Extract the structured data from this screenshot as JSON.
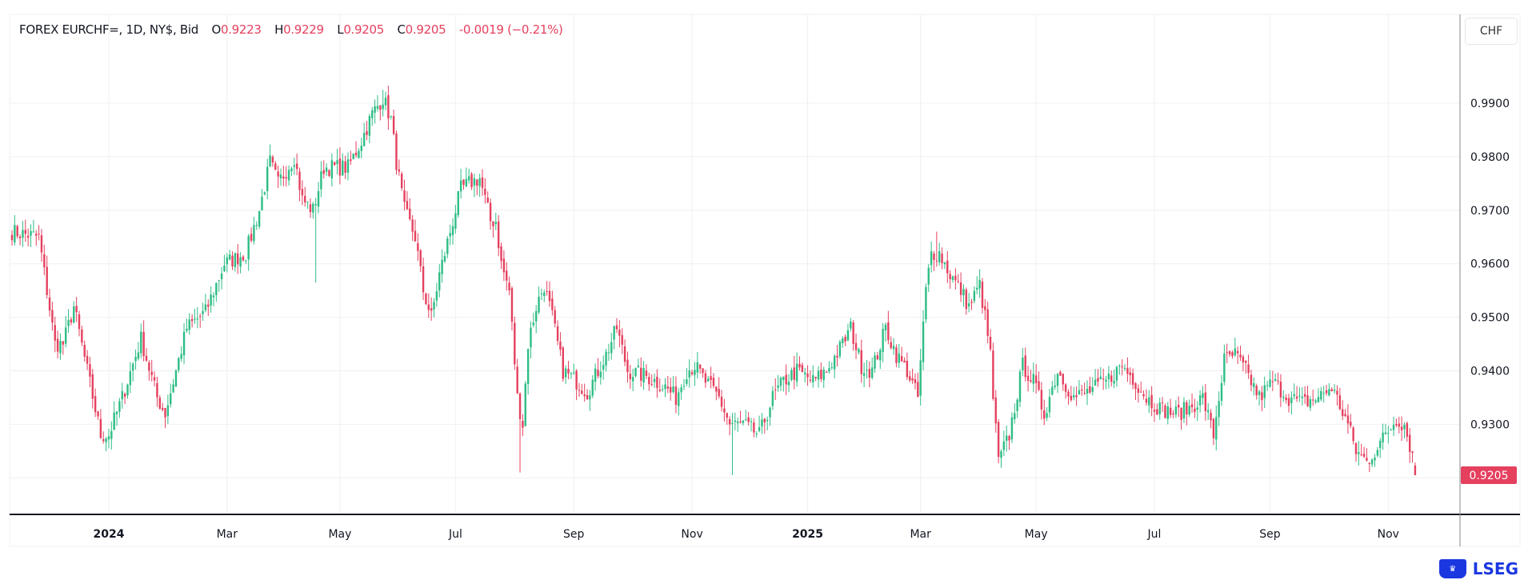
{
  "legend": {
    "symbol": "FOREX EURCHF=, 1D, NY$, Bid",
    "open_label": "O",
    "open": "0.9223",
    "high_label": "H",
    "high": "0.9229",
    "low_label": "L",
    "low": "0.9205",
    "close_label": "C",
    "close": "0.9205",
    "change": "-0.0019 (−0.21%)"
  },
  "currency_button": "CHF",
  "logo_text": "LSEG",
  "colors": {
    "up": "#2ebd85",
    "down": "#e5405e",
    "grid": "#f0f0f0",
    "last_price_bg": "#e5405e"
  },
  "chart_data": {
    "type": "candlestick",
    "title": "FOREX EURCHF=, 1D, NY$, Bid",
    "ylabel": "CHF",
    "ylim": [
      0.9135,
      0.9965
    ],
    "y_ticks": [
      "0.9900",
      "0.9800",
      "0.9700",
      "0.9600",
      "0.9500",
      "0.9400",
      "0.9300"
    ],
    "x_ticks": [
      {
        "label": "2024",
        "day": 36,
        "bold": true
      },
      {
        "label": "Mar",
        "day": 80
      },
      {
        "label": "May",
        "day": 122
      },
      {
        "label": "Jul",
        "day": 165
      },
      {
        "label": "Sep",
        "day": 209
      },
      {
        "label": "Nov",
        "day": 253
      },
      {
        "label": "2025",
        "day": 296,
        "bold": true
      },
      {
        "label": "Mar",
        "day": 338
      },
      {
        "label": "May",
        "day": 381
      },
      {
        "label": "Jul",
        "day": 425
      },
      {
        "label": "Sep",
        "day": 468
      },
      {
        "label": "Nov",
        "day": 512
      }
    ],
    "total_days": 523,
    "close_keypoints": [
      [
        0,
        0.966
      ],
      [
        10,
        0.965
      ],
      [
        13,
        0.955
      ],
      [
        16,
        0.945
      ],
      [
        19,
        0.945
      ],
      [
        23,
        0.952
      ],
      [
        28,
        0.94
      ],
      [
        33,
        0.928
      ],
      [
        36,
        0.928
      ],
      [
        41,
        0.935
      ],
      [
        48,
        0.946
      ],
      [
        54,
        0.935
      ],
      [
        57,
        0.932
      ],
      [
        65,
        0.948
      ],
      [
        72,
        0.951
      ],
      [
        79,
        0.96
      ],
      [
        87,
        0.962
      ],
      [
        92,
        0.97
      ],
      [
        96,
        0.979
      ],
      [
        99,
        0.975
      ],
      [
        105,
        0.98
      ],
      [
        108,
        0.972
      ],
      [
        112,
        0.97
      ],
      [
        116,
        0.978
      ],
      [
        119,
        0.978
      ],
      [
        125,
        0.978
      ],
      [
        130,
        0.983
      ],
      [
        134,
        0.988
      ],
      [
        138,
        0.991
      ],
      [
        141,
        0.987
      ],
      [
        143,
        0.979
      ],
      [
        146,
        0.97
      ],
      [
        150,
        0.965
      ],
      [
        153,
        0.955
      ],
      [
        156,
        0.95
      ],
      [
        159,
        0.958
      ],
      [
        163,
        0.966
      ],
      [
        167,
        0.974
      ],
      [
        170,
        0.975
      ],
      [
        174,
        0.976
      ],
      [
        178,
        0.968
      ],
      [
        180,
        0.968
      ],
      [
        182,
        0.96
      ],
      [
        185,
        0.955
      ],
      [
        188,
        0.935
      ],
      [
        190,
        0.93
      ],
      [
        192,
        0.945
      ],
      [
        195,
        0.952
      ],
      [
        198,
        0.956
      ],
      [
        201,
        0.95
      ],
      [
        205,
        0.94
      ],
      [
        210,
        0.938
      ],
      [
        214,
        0.936
      ],
      [
        218,
        0.94
      ],
      [
        221,
        0.943
      ],
      [
        225,
        0.948
      ],
      [
        229,
        0.94
      ],
      [
        236,
        0.939
      ],
      [
        243,
        0.937
      ],
      [
        247,
        0.935
      ],
      [
        251,
        0.94
      ],
      [
        254,
        0.941
      ],
      [
        258,
        0.938
      ],
      [
        263,
        0.935
      ],
      [
        267,
        0.93
      ],
      [
        272,
        0.93
      ],
      [
        278,
        0.928
      ],
      [
        283,
        0.935
      ],
      [
        287,
        0.938
      ],
      [
        292,
        0.94
      ],
      [
        298,
        0.938
      ],
      [
        303,
        0.94
      ],
      [
        309,
        0.945
      ],
      [
        312,
        0.948
      ],
      [
        316,
        0.941
      ],
      [
        320,
        0.94
      ],
      [
        325,
        0.948
      ],
      [
        329,
        0.943
      ],
      [
        333,
        0.94
      ],
      [
        337,
        0.935
      ],
      [
        340,
        0.955
      ],
      [
        342,
        0.962
      ],
      [
        345,
        0.962
      ],
      [
        349,
        0.958
      ],
      [
        353,
        0.955
      ],
      [
        356,
        0.952
      ],
      [
        360,
        0.956
      ],
      [
        362,
        0.95
      ],
      [
        364,
        0.943
      ],
      [
        365,
        0.935
      ],
      [
        367,
        0.923
      ],
      [
        371,
        0.928
      ],
      [
        376,
        0.941
      ],
      [
        380,
        0.938
      ],
      [
        384,
        0.932
      ],
      [
        389,
        0.94
      ],
      [
        395,
        0.935
      ],
      [
        400,
        0.936
      ],
      [
        407,
        0.938
      ],
      [
        413,
        0.941
      ],
      [
        418,
        0.938
      ],
      [
        422,
        0.935
      ],
      [
        427,
        0.933
      ],
      [
        433,
        0.932
      ],
      [
        438,
        0.933
      ],
      [
        443,
        0.935
      ],
      [
        447,
        0.928
      ],
      [
        451,
        0.942
      ],
      [
        455,
        0.943
      ],
      [
        459,
        0.94
      ],
      [
        464,
        0.935
      ],
      [
        469,
        0.938
      ],
      [
        475,
        0.935
      ],
      [
        480,
        0.934
      ],
      [
        486,
        0.935
      ],
      [
        491,
        0.937
      ],
      [
        497,
        0.93
      ],
      [
        500,
        0.925
      ],
      [
        504,
        0.923
      ],
      [
        507,
        0.925
      ],
      [
        511,
        0.928
      ],
      [
        515,
        0.931
      ],
      [
        518,
        0.93
      ],
      [
        522,
        0.9223
      ]
    ],
    "wick_extremes": [
      [
        113,
        0.9565,
        "low"
      ],
      [
        189,
        0.921,
        "low"
      ],
      [
        268,
        0.9205,
        "low"
      ],
      [
        138,
        0.9925,
        "high"
      ],
      [
        344,
        0.966,
        "high"
      ]
    ],
    "last_candle": {
      "open": 0.9223,
      "high": 0.9229,
      "low": 0.9205,
      "close": 0.9205
    },
    "last_price_label": "0.9205"
  }
}
